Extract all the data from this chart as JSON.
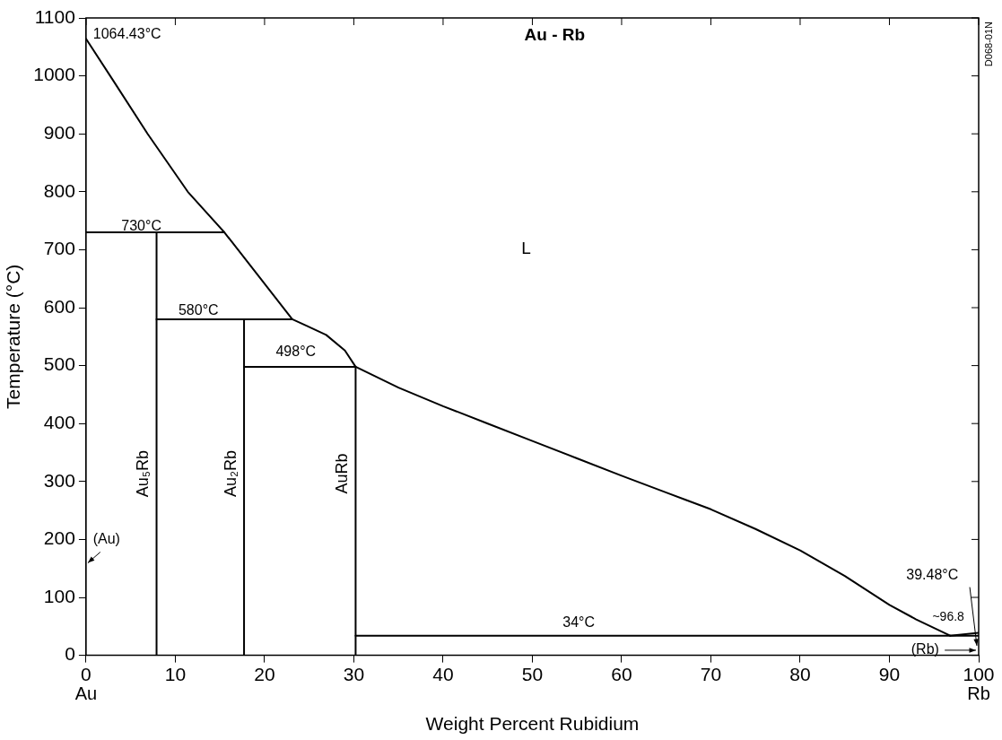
{
  "chart_data": {
    "type": "line",
    "title": "Au - Rb",
    "xlabel": "Weight Percent Rubidium",
    "ylabel": "Temperature (°C)",
    "xlim": [
      0,
      100
    ],
    "xticks": [
      0,
      10,
      20,
      30,
      40,
      50,
      60,
      70,
      80,
      90,
      100
    ],
    "ylim": [
      0,
      1100
    ],
    "yticks": [
      0,
      100,
      200,
      300,
      400,
      500,
      600,
      700,
      800,
      900,
      1000,
      1100
    ],
    "grid": false,
    "legend": false,
    "marker": "none",
    "line_style": "solid",
    "series": [
      {
        "color": "#000000",
        "x": [
          0,
          3,
          6.9,
          11.4,
          15.5,
          19.3,
          23.1,
          24.8,
          26.9,
          29,
          30.2,
          35,
          40,
          45,
          50,
          55,
          60,
          65,
          70,
          75,
          80,
          85,
          90,
          93,
          96.8
        ],
        "values": [
          1064,
          993,
          900,
          800,
          730,
          655,
          580,
          568,
          553,
          526,
          498,
          462,
          430,
          400,
          370,
          340,
          310,
          281,
          252,
          218,
          181,
          137,
          87,
          62,
          34
        ]
      },
      {
        "color": "#000000",
        "x": [
          96.8,
          100
        ],
        "values": [
          34,
          39
        ]
      },
      {
        "color": "#000000",
        "x": [
          0,
          15.5
        ],
        "values": [
          730,
          730
        ]
      },
      {
        "color": "#000000",
        "x": [
          7.9,
          23.1
        ],
        "values": [
          580,
          580
        ]
      },
      {
        "color": "#000000",
        "x": [
          17.7,
          30.2
        ],
        "values": [
          498,
          498
        ]
      },
      {
        "color": "#000000",
        "x": [
          30.2,
          100
        ],
        "values": [
          34,
          34
        ]
      },
      {
        "name": "Au₅Rb",
        "color": "#000000",
        "x": [
          7.9,
          7.9
        ],
        "values": [
          0,
          730
        ]
      },
      {
        "name": "Au₂Rb",
        "color": "#000000",
        "x": [
          17.7,
          17.7
        ],
        "values": [
          0,
          580
        ]
      },
      {
        "name": "AuRb",
        "color": "#000000",
        "x": [
          30.2,
          30.2
        ],
        "values": [
          0,
          498
        ]
      }
    ],
    "annotations": [
      "1064.43°C",
      "730°C",
      "580°C",
      "498°C",
      "34°C",
      "L",
      "(Au)",
      "39.48°C",
      "~96.8",
      "(Rb)",
      "Au",
      "Rb",
      "D068-01N"
    ]
  }
}
